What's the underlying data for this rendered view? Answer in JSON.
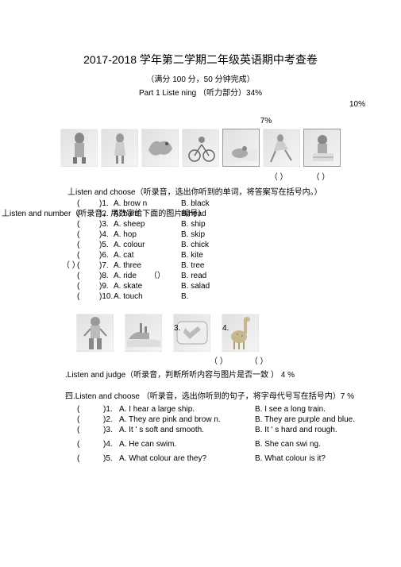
{
  "title": "2017-2018 学年第二学期二年级英语期中考查卷",
  "subtitle": "（满分 100 分，50 分钟完成）",
  "partHeader": "Part 1 Liste ning    （听力部分）34%",
  "pct10": "10%",
  "pct7": "7%",
  "parenPair": "（    ）",
  "section2": "丄isten and choose（听录音，选出你听到的单词，将答案写在括号内。）",
  "section1left": "丄isten and number（听录音，用数字给下面的图片编号）",
  "questions": [
    {
      "n": "1.",
      "a": "A. brow n",
      "b": "B. black"
    },
    {
      "n": "2.",
      "a": "A. hard",
      "b": "B.head"
    },
    {
      "n": "3.",
      "a": "A. sheep",
      "b": "B. ship"
    },
    {
      "n": "4.",
      "a": "A. hop",
      "b": "B. skip"
    },
    {
      "n": "5.",
      "a": "A. colour",
      "b": "B. chick"
    },
    {
      "n": "6.",
      "a": "A. cat",
      "b": "B. kite"
    },
    {
      "n": "7.",
      "a": "A. three",
      "b": "B. tree"
    },
    {
      "n": "8.",
      "a": "A. ride",
      "b": "B. read"
    },
    {
      "n": "9.",
      "a": "A. skate",
      "b": "B. salad"
    },
    {
      "n": "10.",
      "a": "A. touch",
      "b": "B."
    }
  ],
  "qSpecial1": "（ ）",
  "qSpecial2": "（）",
  "num3": "3.",
  "num4": "4.",
  "judgeLabel": ".Listen and judge（听录音，判断所听内容与图片是否一致     ） 4 %",
  "section4": "四.Listen and choose （听录音，选出你听到的句子，将字母代号写在括号内）7 %",
  "q4": [
    {
      "n": "1.",
      "a": "A. I hear a large ship.",
      "b": "B. I see a long train."
    },
    {
      "n": "2.",
      "a": "A. They are pink and brow n.",
      "b": "B. They are purple and blue."
    },
    {
      "n": "3.",
      "a": "A. It ' s soft and smooth.",
      "b": "B. It ' s hard and rough."
    },
    {
      "n": "4.",
      "a": "A. He can swim.",
      "b": " B. She can swi ng."
    },
    {
      "n": "5.",
      "a": "A. What colour are they?",
      "b": "B. What colour is it?"
    }
  ],
  "paren": "(",
  "parenClose": ")"
}
